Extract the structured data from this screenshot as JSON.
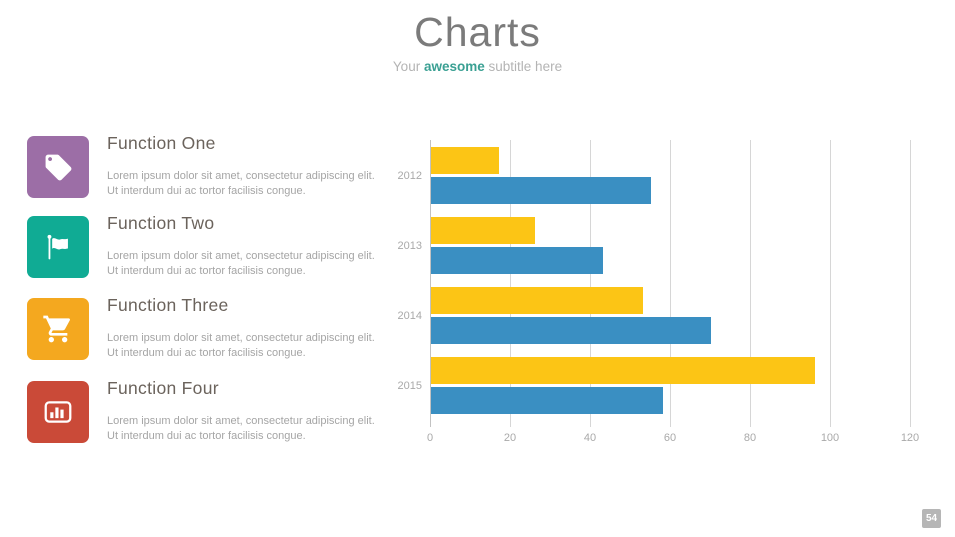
{
  "header": {
    "title": "Charts",
    "subtitle_prefix": "Your",
    "subtitle_accent": "awesome",
    "subtitle_suffix": "subtitle here"
  },
  "features": [
    {
      "icon": "tag-icon",
      "color": "#9c6ea6",
      "title": "Function One",
      "desc_line1": "Lorem ipsum dolor sit amet, consectetur adipiscing elit.",
      "desc_line2": "Ut interdum dui ac tortor facilisis congue."
    },
    {
      "icon": "flag-icon",
      "color": "#10ab94",
      "title": "Function Two",
      "desc_line1": "Lorem ipsum dolor sit amet, consectetur adipiscing elit.",
      "desc_line2": "Ut interdum dui ac tortor facilisis congue."
    },
    {
      "icon": "cart-icon",
      "color": "#f4a81f",
      "title": "Function Three",
      "desc_line1": "Lorem ipsum dolor sit amet, consectetur adipiscing elit.",
      "desc_line2": "Ut interdum dui ac tortor facilisis congue."
    },
    {
      "icon": "bar-chart-icon",
      "color": "#ca4a38",
      "title": "Function Four",
      "desc_line1": "Lorem ipsum dolor sit amet, consectetur adipiscing elit.",
      "desc_line2": "Ut interdum dui ac tortor facilisis congue."
    }
  ],
  "chart_data": {
    "type": "bar",
    "orientation": "horizontal",
    "categories": [
      "2012",
      "2013",
      "2014",
      "2015"
    ],
    "series": [
      {
        "name": "yellow",
        "color": "#fcc515",
        "values": [
          17,
          26,
          53,
          96
        ]
      },
      {
        "name": "blue",
        "color": "#3a8fc2",
        "values": [
          55,
          43,
          70,
          58
        ]
      }
    ],
    "xlim": [
      0,
      120
    ],
    "xticks": [
      0,
      20,
      40,
      60,
      80,
      100,
      120
    ],
    "grid": true,
    "legend": false,
    "title": "",
    "xlabel": "",
    "ylabel": ""
  },
  "page_number": "54"
}
